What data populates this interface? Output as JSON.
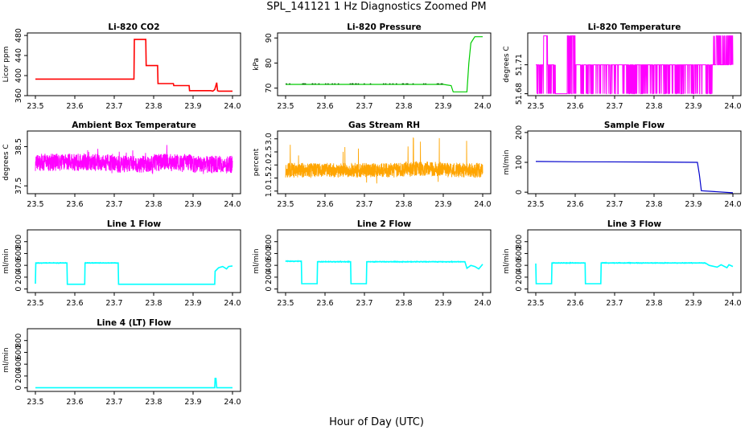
{
  "page": {
    "title": "SPL_141121  1 Hz Diagnostics Zoomed PM",
    "xlabel": "Hour of Day (UTC)"
  },
  "chart_data": [
    {
      "type": "line",
      "title": "Li-820 CO2",
      "ylabel": "Licor ppm",
      "color": "#ff0000",
      "xlim": [
        23.5,
        24.0
      ],
      "ylim": [
        360,
        485
      ],
      "yticks": [
        360,
        400,
        440,
        480
      ],
      "xticks": [
        "23.5",
        "23.6",
        "23.7",
        "23.8",
        "23.9",
        "24.0"
      ],
      "x": [
        23.5,
        23.75,
        23.751,
        23.78,
        23.781,
        23.81,
        23.811,
        23.85,
        23.851,
        23.89,
        23.891,
        23.945,
        23.95,
        23.955,
        23.96,
        23.962,
        23.965,
        24.0
      ],
      "y": [
        393,
        393,
        472,
        472,
        420,
        420,
        384,
        384,
        380,
        380,
        370,
        370,
        369,
        372,
        386,
        370,
        369,
        369
      ]
    },
    {
      "type": "line",
      "title": "Li-820 Pressure",
      "ylabel": "kPa",
      "color": "#00cc00",
      "xlim": [
        23.5,
        24.0
      ],
      "ylim": [
        67,
        92
      ],
      "yticks": [
        70,
        80,
        90
      ],
      "xticks": [
        "23.5",
        "23.6",
        "23.7",
        "23.8",
        "23.9",
        "24.0"
      ],
      "x": [
        23.5,
        23.9,
        23.92,
        23.925,
        23.96,
        23.965,
        23.97,
        23.98,
        24.0
      ],
      "y": [
        71.5,
        71.5,
        71.0,
        68.5,
        68.5,
        80.0,
        88.0,
        90.5,
        90.5
      ]
    },
    {
      "type": "line",
      "title": "Li-820 Temperature",
      "ylabel": "degrees C",
      "color": "#ff00ff",
      "xlim": [
        23.5,
        24.0
      ],
      "ylim": [
        51.678,
        51.743
      ],
      "yticks": [
        51.68,
        51.71
      ],
      "xticks": [
        "23.5",
        "23.6",
        "23.7",
        "23.8",
        "23.9",
        "24.0"
      ],
      "levels": [
        51.68,
        51.71,
        51.74
      ],
      "x": [
        23.5,
        23.52,
        23.53,
        23.55,
        23.58,
        23.6,
        23.95,
        23.96,
        24.0
      ],
      "y": [
        51.71,
        51.74,
        51.71,
        51.68,
        51.74,
        51.71,
        51.71,
        51.74,
        51.74
      ]
    },
    {
      "type": "line",
      "title": "Ambient Box Temperature",
      "ylabel": "degrees C",
      "color": "#ff00ff",
      "xlim": [
        23.5,
        24.0
      ],
      "ylim": [
        37.3,
        38.9
      ],
      "yticks": [
        37.5,
        38.5
      ],
      "xticks": [
        "23.5",
        "23.6",
        "23.7",
        "23.8",
        "23.9",
        "24.0"
      ],
      "x": [
        23.5,
        23.6,
        23.7,
        23.8,
        23.9,
        24.0
      ],
      "y": [
        38.1,
        38.1,
        38.05,
        38.1,
        38.05,
        38.0
      ]
    },
    {
      "type": "line",
      "title": "Gas Stream RH",
      "ylabel": "percent",
      "color": "#ffa500",
      "xlim": [
        23.5,
        24.0
      ],
      "ylim": [
        0.9,
        3.3
      ],
      "yticks": [
        1.0,
        1.5,
        2.0,
        2.5,
        3.0
      ],
      "xticks": [
        "23.5",
        "23.6",
        "23.7",
        "23.8",
        "23.9",
        "24.0"
      ],
      "x": [
        23.5,
        23.6,
        23.7,
        23.8,
        23.9,
        24.0
      ],
      "y": [
        1.8,
        1.8,
        1.8,
        1.85,
        1.8,
        1.8
      ]
    },
    {
      "type": "line",
      "title": "Sample Flow",
      "ylabel": "ml/min",
      "color": "#0000cc",
      "xlim": [
        23.5,
        24.0
      ],
      "ylim": [
        -5,
        205
      ],
      "yticks": [
        0,
        100,
        200
      ],
      "xticks": [
        "23.5",
        "23.6",
        "23.7",
        "23.8",
        "23.9",
        "24.0"
      ],
      "x": [
        23.5,
        23.6,
        23.8,
        23.91,
        23.915,
        23.92,
        24.0
      ],
      "y": [
        103,
        102,
        101,
        100,
        60,
        5,
        -2
      ]
    },
    {
      "type": "line",
      "title": "Line 1 Flow",
      "ylabel": "ml/min",
      "color": "#00ffff",
      "xlim": [
        23.5,
        24.0
      ],
      "ylim": [
        -60,
        1000
      ],
      "yticks": [
        0,
        200,
        400,
        600,
        800
      ],
      "xticks": [
        "23.5",
        "23.6",
        "23.7",
        "23.8",
        "23.9",
        "24.0"
      ],
      "x": [
        23.5,
        23.501,
        23.58,
        23.581,
        23.625,
        23.626,
        23.71,
        23.711,
        23.955,
        23.956,
        23.965,
        23.975,
        23.985,
        23.99,
        24.0
      ],
      "y": [
        90,
        440,
        440,
        80,
        80,
        440,
        440,
        80,
        80,
        300,
        360,
        380,
        340,
        380,
        390
      ]
    },
    {
      "type": "line",
      "title": "Line 2 Flow",
      "ylabel": "ml/min",
      "color": "#00ffff",
      "xlim": [
        23.5,
        24.0
      ],
      "ylim": [
        -60,
        1000
      ],
      "yticks": [
        0,
        200,
        400,
        600,
        800
      ],
      "xticks": [
        "23.5",
        "23.6",
        "23.7",
        "23.8",
        "23.9",
        "24.0"
      ],
      "x": [
        23.5,
        23.54,
        23.541,
        23.58,
        23.581,
        23.665,
        23.666,
        23.705,
        23.706,
        23.955,
        23.96,
        23.97,
        23.98,
        23.99,
        24.0
      ],
      "y": [
        470,
        470,
        90,
        90,
        460,
        460,
        90,
        90,
        460,
        460,
        350,
        400,
        380,
        340,
        420
      ]
    },
    {
      "type": "line",
      "title": "Line 3 Flow",
      "ylabel": "ml/min",
      "color": "#00ffff",
      "xlim": [
        23.5,
        24.0
      ],
      "ylim": [
        -60,
        1000
      ],
      "yticks": [
        0,
        200,
        400,
        600,
        800
      ],
      "xticks": [
        "23.5",
        "23.6",
        "23.7",
        "23.8",
        "23.9",
        "24.0"
      ],
      "x": [
        23.5,
        23.501,
        23.54,
        23.541,
        23.625,
        23.626,
        23.665,
        23.666,
        23.93,
        23.94,
        23.96,
        23.97,
        23.985,
        23.99,
        24.0
      ],
      "y": [
        430,
        90,
        90,
        440,
        440,
        90,
        90,
        440,
        440,
        400,
        370,
        410,
        360,
        410,
        380
      ]
    },
    {
      "type": "line",
      "title": "Line 4 (LT) Flow",
      "ylabel": "ml/min",
      "color": "#00ffff",
      "xlim": [
        23.5,
        24.0
      ],
      "ylim": [
        -60,
        1000
      ],
      "yticks": [
        0,
        200,
        400,
        600,
        800
      ],
      "xticks": [
        "23.5",
        "23.6",
        "23.7",
        "23.8",
        "23.9",
        "24.0"
      ],
      "x": [
        23.5,
        23.955,
        23.956,
        23.958,
        23.96,
        24.0
      ],
      "y": [
        2,
        2,
        160,
        160,
        2,
        2
      ]
    }
  ]
}
